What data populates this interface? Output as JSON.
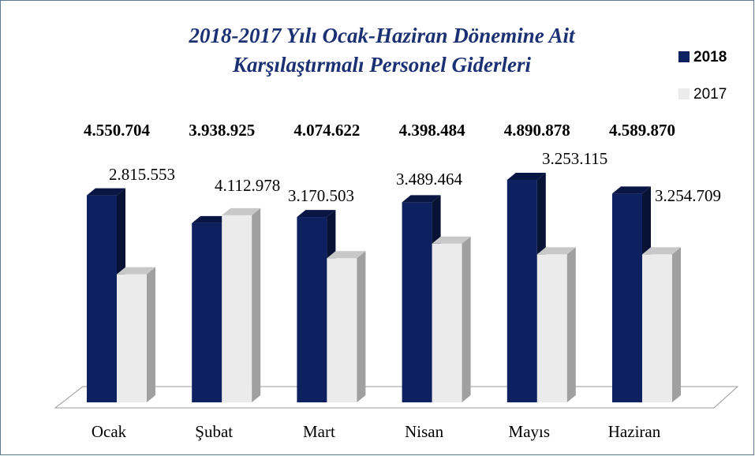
{
  "chart_data": {
    "type": "bar3d",
    "title": [
      "2018-2017 Yılı Ocak-Haziran Dönemine Ait",
      "Karşılaştırmalı Personel Giderleri"
    ],
    "categories": [
      "Ocak",
      "Şubat",
      "Mart",
      "Nisan",
      "Mayıs",
      "Haziran"
    ],
    "series": [
      {
        "name": "2018",
        "color": "#0d2060",
        "values": [
          4550704,
          3938925,
          4074622,
          4398484,
          4890878,
          4589870
        ],
        "value_labels": [
          "4.550.704",
          "3.938.925",
          "4.074.622",
          "4.398.484",
          "4.890.878",
          "4.589.870"
        ]
      },
      {
        "name": "2017",
        "color": "#ebebeb",
        "values": [
          2815553,
          4112978,
          3170503,
          3489464,
          3253115,
          3254709
        ],
        "value_labels": [
          "2.815.553",
          "4.112.978",
          "3.170.503",
          "3.489.464",
          "3.253.115",
          "3.254.709"
        ]
      }
    ],
    "legend": "right"
  }
}
